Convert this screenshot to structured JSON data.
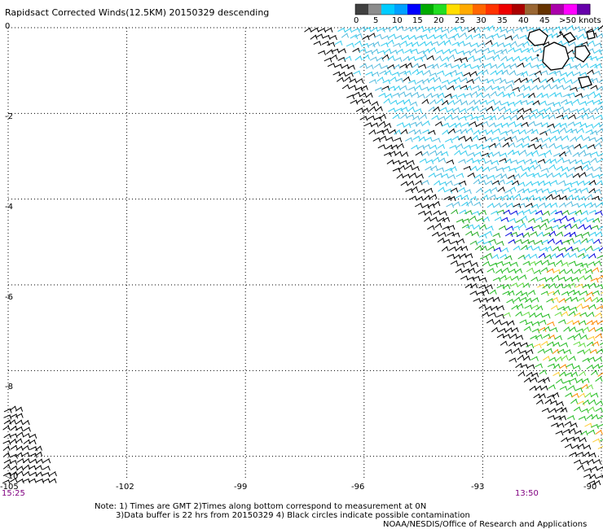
{
  "header": {
    "title": "Rapidsact Corrected Winds(12.5KM) 20150329 descending"
  },
  "color_scale": {
    "labels": [
      "0",
      "5",
      "10",
      "15",
      "20",
      "25",
      "30",
      "35",
      "40",
      "45",
      ">50 knots"
    ],
    "colors": [
      "#404040",
      "#8c8c8c",
      "#00ccff",
      "#00a0ff",
      "#0000ff",
      "#00aa00",
      "#22dd22",
      "#ffdd00",
      "#ffaa00",
      "#ff6600",
      "#ff3300",
      "#ee0000",
      "#aa0000",
      "#996633",
      "#663300",
      "#aa00aa",
      "#ff00ff",
      "#6600aa"
    ]
  },
  "axes": {
    "lat_ticks": [
      "0",
      "-2",
      "-4",
      "-6",
      "-8",
      "-10"
    ],
    "lon_ticks": [
      "-105",
      "-102",
      "-99",
      "-96",
      "-93",
      "-90"
    ]
  },
  "times": {
    "left": "15:25",
    "right": "13:50"
  },
  "notes": {
    "line1": "Note: 1) Times are GMT 2)Times along bottom correspond to measurement at 0N",
    "line2": "3)Data buffer is 22 hrs from 20150329 4) Black circles indicate possible contamination",
    "credit": "NOAA/NESDIS/Office of Research and Applications"
  },
  "map": {
    "lon_range": [
      -105,
      -90
    ],
    "lat_range": [
      -10.5,
      0
    ],
    "land": "Galapagos Islands"
  },
  "chart_data": {
    "type": "wind barbs",
    "title": "Rapidsact Corrected Winds(12.5KM) 20150329 descending",
    "x_ticks": [
      "-105",
      "-102",
      "-99",
      "-96",
      "-93",
      "-90"
    ],
    "y_ticks": [
      "0",
      "-2",
      "-4",
      "-6",
      "-8",
      "-10"
    ],
    "xlim": [
      -105,
      -90
    ],
    "ylim": [
      -10.5,
      0
    ],
    "grid": true
  }
}
